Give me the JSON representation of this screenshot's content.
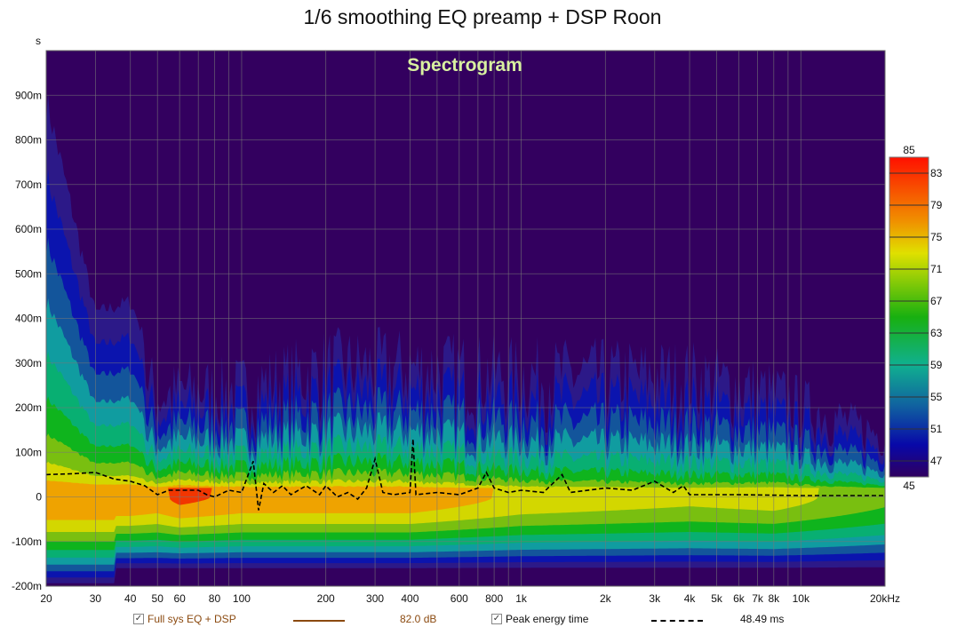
{
  "title": "1/6 smoothing EQ preamp + DSP Roon",
  "chart_data": {
    "type": "heatmap",
    "subtitle": "Spectrogram",
    "xlabel": "",
    "ylabel": "s",
    "x_scale": "log",
    "xlim": [
      20,
      20000
    ],
    "ylim": [
      -0.2,
      1.0
    ],
    "x_ticks": [
      {
        "v": 20,
        "l": "20"
      },
      {
        "v": 30,
        "l": "30"
      },
      {
        "v": 40,
        "l": "40"
      },
      {
        "v": 50,
        "l": "50"
      },
      {
        "v": 60,
        "l": "60"
      },
      {
        "v": 80,
        "l": "80"
      },
      {
        "v": 100,
        "l": "100"
      },
      {
        "v": 200,
        "l": "200"
      },
      {
        "v": 300,
        "l": "300"
      },
      {
        "v": 400,
        "l": "400"
      },
      {
        "v": 600,
        "l": "600"
      },
      {
        "v": 800,
        "l": "800"
      },
      {
        "v": 1000,
        "l": "1k"
      },
      {
        "v": 2000,
        "l": "2k"
      },
      {
        "v": 3000,
        "l": "3k"
      },
      {
        "v": 4000,
        "l": "4k"
      },
      {
        "v": 5000,
        "l": "5k"
      },
      {
        "v": 6000,
        "l": "6k"
      },
      {
        "v": 7000,
        "l": "7k"
      },
      {
        "v": 8000,
        "l": "8k"
      },
      {
        "v": 10000,
        "l": "10k"
      },
      {
        "v": 20000,
        "l": "20kHz"
      }
    ],
    "x_grid": [
      20,
      30,
      40,
      50,
      60,
      70,
      80,
      90,
      100,
      200,
      300,
      400,
      500,
      600,
      700,
      800,
      900,
      1000,
      2000,
      3000,
      4000,
      5000,
      6000,
      7000,
      8000,
      9000,
      10000,
      20000
    ],
    "y_ticks": [
      {
        "v": 0.9,
        "l": "900m"
      },
      {
        "v": 0.8,
        "l": "800m"
      },
      {
        "v": 0.7,
        "l": "700m"
      },
      {
        "v": 0.6,
        "l": "600m"
      },
      {
        "v": 0.5,
        "l": "500m"
      },
      {
        "v": 0.4,
        "l": "400m"
      },
      {
        "v": 0.3,
        "l": "300m"
      },
      {
        "v": 0.2,
        "l": "200m"
      },
      {
        "v": 0.1,
        "l": "100m"
      },
      {
        "v": 0,
        "l": "0"
      },
      {
        "v": -0.1,
        "l": "-100m"
      },
      {
        "v": -0.2,
        "l": "-200m"
      }
    ],
    "colorbar": {
      "min": 45,
      "max": 85,
      "min_label": "45",
      "max_label": "85",
      "ticks": [
        "83",
        "79",
        "75",
        "71",
        "67",
        "63",
        "59",
        "55",
        "51",
        "47"
      ],
      "unit": "dB"
    },
    "envelope": {
      "freq_hz": [
        20,
        25,
        30,
        40,
        50,
        60,
        100,
        200,
        400,
        1000,
        2000,
        4000,
        8000,
        20000
      ],
      "decay_top_ms": [
        1000,
        700,
        450,
        480,
        300,
        320,
        330,
        400,
        400,
        380,
        380,
        380,
        320,
        180
      ],
      "peak_level_db": [
        83,
        83,
        83,
        83,
        82,
        84,
        82,
        82,
        82,
        78,
        77,
        76,
        77,
        72
      ]
    },
    "peak_energy_time": {
      "freq_hz": [
        20,
        25,
        30,
        35,
        40,
        45,
        50,
        55,
        60,
        70,
        75,
        80,
        90,
        100,
        110,
        115,
        120,
        130,
        140,
        150,
        170,
        190,
        200,
        220,
        240,
        260,
        280,
        300,
        320,
        350,
        400,
        410,
        420,
        500,
        600,
        700,
        750,
        800,
        900,
        1000,
        1200,
        1400,
        1500,
        2000,
        2500,
        3000,
        3500,
        3800,
        4000,
        6000,
        10000,
        20000
      ],
      "time_ms": [
        50,
        52,
        55,
        40,
        35,
        25,
        5,
        15,
        15,
        15,
        5,
        0,
        15,
        10,
        80,
        -30,
        30,
        10,
        25,
        5,
        25,
        5,
        25,
        0,
        10,
        -5,
        20,
        85,
        10,
        5,
        10,
        130,
        5,
        10,
        5,
        20,
        55,
        20,
        10,
        15,
        10,
        50,
        10,
        20,
        15,
        35,
        10,
        25,
        5,
        5,
        3,
        3
      ]
    },
    "legend": [
      {
        "label": "Full sys EQ + DSP",
        "value": "82.0 dB",
        "color": "#8b4a10",
        "checked": true
      },
      {
        "label": "Peak energy time",
        "value": "48.49 ms",
        "color": "#000000",
        "checked": true
      }
    ]
  }
}
